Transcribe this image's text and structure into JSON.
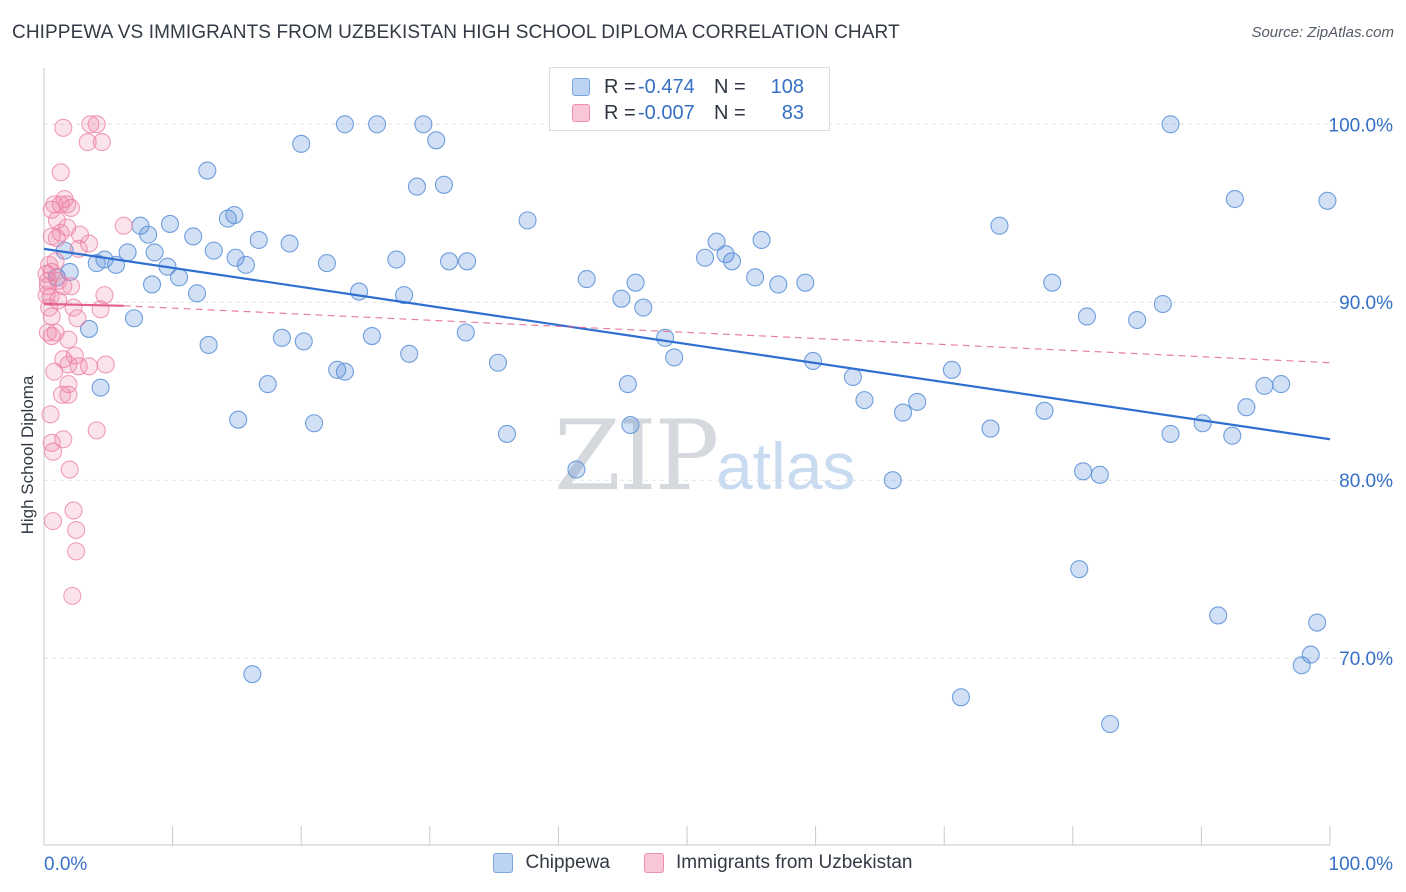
{
  "title": "CHIPPEWA VS IMMIGRANTS FROM UZBEKISTAN HIGH SCHOOL DIPLOMA CORRELATION CHART",
  "source": "Source: ZipAtlas.com",
  "watermark": {
    "zip": "ZIP",
    "atlas": "atlas"
  },
  "legend": {
    "rows": [
      {
        "r_label": "R =",
        "r_value": "-0.474",
        "n_label": "N =",
        "n_value": "108"
      },
      {
        "r_label": "R =",
        "r_value": "-0.007",
        "n_label": "N =",
        "n_value": "83"
      }
    ]
  },
  "chart_data": {
    "type": "scatter",
    "title": "CHIPPEWA VS IMMIGRANTS FROM UZBEKISTAN HIGH SCHOOL DIPLOMA CORRELATION CHART",
    "xlabel": "",
    "ylabel": "High School Diploma",
    "xlim": [
      0,
      100
    ],
    "ylim": [
      59.5,
      103.5
    ],
    "x_tick_labels": [
      "0.0%",
      "100.0%"
    ],
    "y_ticks": [
      70,
      80,
      90,
      100
    ],
    "y_tick_labels": [
      "70.0%",
      "80.0%",
      "90.0%",
      "100.0%"
    ],
    "colors": {
      "chippewa": "#5b8fd8",
      "uzbekistan": "#ec7fa3",
      "chippewa_line": "#2f6fd0",
      "uzbekistan_line": "#e3608e"
    },
    "series": [
      {
        "name": "Chippewa",
        "trend": {
          "x": [
            0,
            100
          ],
          "y": [
            93.0,
            82.3
          ],
          "style": "solid"
        },
        "points": [
          [
            23.4,
            100
          ],
          [
            25.9,
            100
          ],
          [
            29.5,
            100
          ],
          [
            87.6,
            100
          ],
          [
            20.0,
            98.9
          ],
          [
            30.5,
            99.1
          ],
          [
            12.7,
            97.4
          ],
          [
            31.1,
            96.6
          ],
          [
            29.0,
            96.5
          ],
          [
            92.6,
            95.8
          ],
          [
            99.8,
            95.7
          ],
          [
            14.3,
            94.7
          ],
          [
            14.8,
            94.9
          ],
          [
            9.8,
            94.4
          ],
          [
            7.5,
            94.3
          ],
          [
            37.6,
            94.6
          ],
          [
            74.3,
            94.3
          ],
          [
            6.5,
            92.8
          ],
          [
            8.1,
            93.8
          ],
          [
            11.6,
            93.7
          ],
          [
            16.7,
            93.5
          ],
          [
            19.1,
            93.3
          ],
          [
            52.3,
            93.4
          ],
          [
            55.8,
            93.5
          ],
          [
            1.6,
            92.9
          ],
          [
            4.7,
            92.4
          ],
          [
            8.6,
            92.8
          ],
          [
            13.2,
            92.9
          ],
          [
            14.9,
            92.5
          ],
          [
            27.4,
            92.4
          ],
          [
            32.9,
            92.3
          ],
          [
            51.4,
            92.5
          ],
          [
            53.0,
            92.7
          ],
          [
            53.5,
            92.3
          ],
          [
            4.1,
            92.2
          ],
          [
            5.6,
            92.1
          ],
          [
            15.7,
            92.1
          ],
          [
            22.0,
            92.2
          ],
          [
            31.5,
            92.3
          ],
          [
            9.6,
            92.0
          ],
          [
            2.0,
            91.7
          ],
          [
            1.0,
            91.4
          ],
          [
            10.5,
            91.4
          ],
          [
            42.2,
            91.3
          ],
          [
            46.0,
            91.1
          ],
          [
            55.3,
            91.4
          ],
          [
            78.4,
            91.1
          ],
          [
            59.2,
            91.1
          ],
          [
            57.1,
            91.0
          ],
          [
            8.4,
            91.0
          ],
          [
            24.5,
            90.6
          ],
          [
            28.0,
            90.4
          ],
          [
            11.9,
            90.5
          ],
          [
            44.9,
            90.2
          ],
          [
            46.6,
            89.7
          ],
          [
            7.0,
            89.1
          ],
          [
            87.0,
            89.9
          ],
          [
            81.1,
            89.2
          ],
          [
            85.0,
            89.0
          ],
          [
            3.5,
            88.5
          ],
          [
            18.5,
            88.0
          ],
          [
            20.2,
            87.8
          ],
          [
            12.8,
            87.6
          ],
          [
            25.5,
            88.1
          ],
          [
            32.8,
            88.3
          ],
          [
            48.3,
            88.0
          ],
          [
            28.4,
            87.1
          ],
          [
            35.3,
            86.6
          ],
          [
            49.0,
            86.9
          ],
          [
            59.8,
            86.7
          ],
          [
            22.8,
            86.2
          ],
          [
            23.4,
            86.1
          ],
          [
            70.6,
            86.2
          ],
          [
            62.9,
            85.8
          ],
          [
            4.4,
            85.2
          ],
          [
            17.4,
            85.4
          ],
          [
            45.4,
            85.4
          ],
          [
            94.9,
            85.3
          ],
          [
            96.2,
            85.4
          ],
          [
            63.8,
            84.5
          ],
          [
            67.9,
            84.4
          ],
          [
            66.8,
            83.8
          ],
          [
            77.8,
            83.9
          ],
          [
            93.5,
            84.1
          ],
          [
            15.1,
            83.4
          ],
          [
            21.0,
            83.2
          ],
          [
            45.6,
            83.1
          ],
          [
            90.1,
            83.2
          ],
          [
            36.0,
            82.6
          ],
          [
            73.6,
            82.9
          ],
          [
            87.6,
            82.6
          ],
          [
            92.4,
            82.5
          ],
          [
            41.4,
            80.6
          ],
          [
            80.8,
            80.5
          ],
          [
            82.1,
            80.3
          ],
          [
            66.0,
            80.0
          ],
          [
            80.5,
            75.0
          ],
          [
            91.3,
            72.4
          ],
          [
            99.0,
            72.0
          ],
          [
            98.5,
            70.2
          ],
          [
            97.8,
            69.6
          ],
          [
            16.2,
            69.1
          ],
          [
            71.3,
            67.8
          ],
          [
            82.9,
            66.3
          ]
        ]
      },
      {
        "name": "Immigrants from Uzbekistan",
        "trend": {
          "x": [
            0,
            6.2,
            100
          ],
          "y": [
            89.9,
            89.8,
            86.6
          ],
          "style": "solid-then-dashed"
        },
        "points": [
          [
            3.6,
            100
          ],
          [
            4.1,
            100
          ],
          [
            1.5,
            99.8
          ],
          [
            3.4,
            99.0
          ],
          [
            4.5,
            99.0
          ],
          [
            1.3,
            97.3
          ],
          [
            1.6,
            95.8
          ],
          [
            1.8,
            95.5
          ],
          [
            0.8,
            95.5
          ],
          [
            2.1,
            95.3
          ],
          [
            1.3,
            95.5
          ],
          [
            0.6,
            95.2
          ],
          [
            1.0,
            94.6
          ],
          [
            6.2,
            94.3
          ],
          [
            1.8,
            94.2
          ],
          [
            1.3,
            93.9
          ],
          [
            2.8,
            93.8
          ],
          [
            0.6,
            93.7
          ],
          [
            1.0,
            93.6
          ],
          [
            3.5,
            93.3
          ],
          [
            2.7,
            93.0
          ],
          [
            0.9,
            92.3
          ],
          [
            0.4,
            92.1
          ],
          [
            0.6,
            91.7
          ],
          [
            0.2,
            91.6
          ],
          [
            0.3,
            91.2
          ],
          [
            1.1,
            91.2
          ],
          [
            0.3,
            90.9
          ],
          [
            1.5,
            90.9
          ],
          [
            2.1,
            90.9
          ],
          [
            0.2,
            90.4
          ],
          [
            0.5,
            90.3
          ],
          [
            1.1,
            90.1
          ],
          [
            4.7,
            90.4
          ],
          [
            0.4,
            89.7
          ],
          [
            2.3,
            89.7
          ],
          [
            4.4,
            89.6
          ],
          [
            0.6,
            89.2
          ],
          [
            2.6,
            89.1
          ],
          [
            0.3,
            88.3
          ],
          [
            0.9,
            88.3
          ],
          [
            0.6,
            88.1
          ],
          [
            1.9,
            87.9
          ],
          [
            2.4,
            87.0
          ],
          [
            1.5,
            86.8
          ],
          [
            1.9,
            86.5
          ],
          [
            2.7,
            86.4
          ],
          [
            3.5,
            86.4
          ],
          [
            4.8,
            86.5
          ],
          [
            0.8,
            86.1
          ],
          [
            1.9,
            85.4
          ],
          [
            1.4,
            84.8
          ],
          [
            1.9,
            84.8
          ],
          [
            0.5,
            83.7
          ],
          [
            4.1,
            82.8
          ],
          [
            0.6,
            82.1
          ],
          [
            1.5,
            82.3
          ],
          [
            0.7,
            81.6
          ],
          [
            2.0,
            80.6
          ],
          [
            2.3,
            78.3
          ],
          [
            0.7,
            77.7
          ],
          [
            2.5,
            77.2
          ],
          [
            2.5,
            76.0
          ],
          [
            2.2,
            73.5
          ]
        ]
      }
    ]
  }
}
